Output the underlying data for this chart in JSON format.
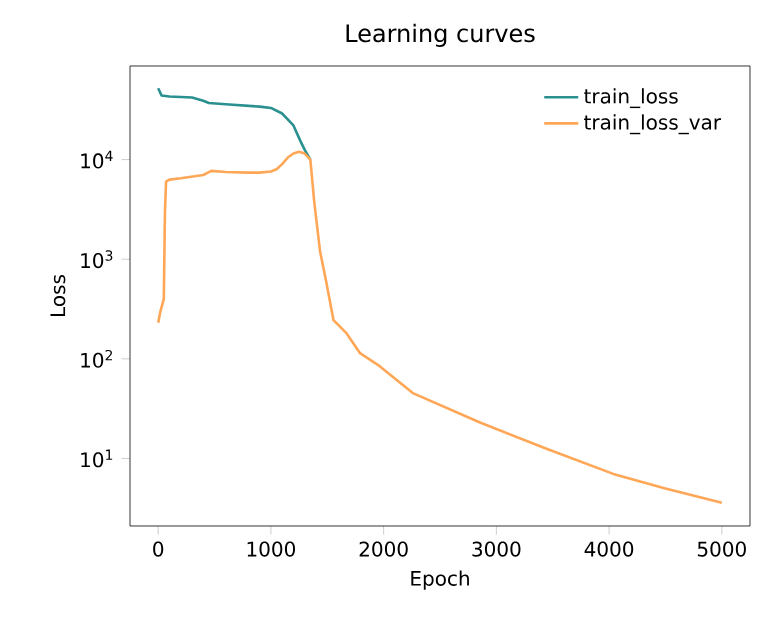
{
  "chart_data": {
    "type": "line",
    "title": "Learning curves",
    "xlabel": "Epoch",
    "ylabel": "Loss",
    "log": "y",
    "legend": "top right",
    "grid": false,
    "xlim": [
      -250,
      5250
    ],
    "xticks": [
      0,
      1000,
      2000,
      3000,
      4000,
      5000
    ],
    "ylim": [
      2.1,
      87000
    ],
    "yticks": [
      {
        "value": 10,
        "label": "10$^{1}$"
      },
      {
        "value": 100,
        "label": "10$^{2}$"
      },
      {
        "value": 1000,
        "label": "10$^{3}$"
      },
      {
        "value": 10000,
        "label": "10$^{4}$"
      }
    ],
    "series": [
      {
        "name": "train_loss",
        "color": "#2a9090",
        "x": [
          0,
          30,
          100,
          300,
          400,
          450,
          600,
          900,
          1000,
          1100,
          1200,
          1260,
          1300,
          1350
        ],
        "values": [
          52000,
          44000,
          43000,
          42000,
          39000,
          37000,
          36000,
          34000,
          33000,
          29000,
          22000,
          15500,
          12500,
          10000
        ]
      },
      {
        "name": "train_loss_var",
        "color": "#ffa756",
        "x": [
          0,
          20,
          50,
          60,
          70,
          100,
          200,
          400,
          450,
          470,
          600,
          800,
          900,
          1000,
          1050,
          1100,
          1150,
          1200,
          1250,
          1300,
          1350,
          1383,
          1436,
          1490,
          1555,
          1672,
          1791,
          1968,
          2264,
          2855,
          3445,
          4037,
          4500,
          5000
        ],
        "values": [
          230,
          300,
          400,
          3000,
          6000,
          6300,
          6500,
          7000,
          7500,
          7700,
          7500,
          7400,
          7400,
          7600,
          8000,
          9000,
          10500,
          11500,
          12000,
          11500,
          10000,
          3900,
          1200,
          600,
          245,
          180,
          114,
          84,
          45,
          23,
          12.5,
          7,
          5,
          3.6
        ]
      }
    ]
  }
}
